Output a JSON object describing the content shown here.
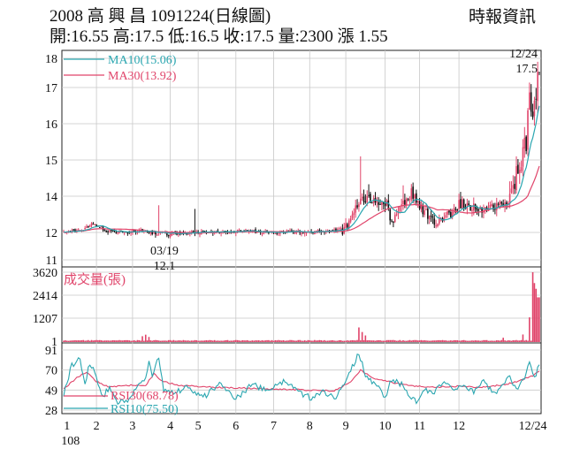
{
  "header": {
    "title": "2008  高 興 昌 1091224(日線圖)",
    "source": "時報資訊",
    "quote": "開:16.55 高:17.5 低:16.5 收:17.5 量:2300 漲 1.55"
  },
  "colors": {
    "up": "#e0446a",
    "down": "#111111",
    "ma10": "#2aa6b0",
    "ma30": "#e0446a",
    "volume": "#e0446a",
    "rsi30": "#e0446a",
    "rsi10": "#2aa6b0",
    "grid": "#c8c8c8"
  },
  "chart_data": [
    {
      "type": "candlestick",
      "panel": "price",
      "y_ticks": [
        "18",
        "17",
        "16",
        "15",
        "14",
        "12",
        "11"
      ],
      "ylim": [
        11,
        18
      ],
      "legend": [
        "MA10(15.06)",
        "MA30(13.92)"
      ],
      "annotations": {
        "high_date": "12/24",
        "high_value": "17.5",
        "low_date": "03/19",
        "low_value": "12.1"
      },
      "anchors": [
        [
          0,
          12.0
        ],
        [
          10,
          12.1
        ],
        [
          18,
          12.5
        ],
        [
          22,
          12.3
        ],
        [
          26,
          12.1
        ],
        [
          35,
          12.0
        ],
        [
          45,
          12.1
        ],
        [
          55,
          12.0
        ],
        [
          65,
          11.95
        ],
        [
          72,
          11.95
        ],
        [
          80,
          12.0
        ],
        [
          90,
          12.05
        ],
        [
          100,
          12.05
        ],
        [
          110,
          12.1
        ],
        [
          120,
          12.05
        ],
        [
          130,
          12.0
        ],
        [
          140,
          12.05
        ],
        [
          150,
          12.05
        ],
        [
          158,
          12.05
        ],
        [
          166,
          12.1
        ],
        [
          172,
          12.25
        ],
        [
          176,
          13.1
        ],
        [
          180,
          13.6
        ],
        [
          186,
          13.9
        ],
        [
          192,
          13.8
        ],
        [
          197,
          13.6
        ],
        [
          200,
          12.5
        ],
        [
          203,
          13.0
        ],
        [
          208,
          13.7
        ],
        [
          213,
          14.0
        ],
        [
          218,
          13.4
        ],
        [
          224,
          12.7
        ],
        [
          230,
          12.6
        ],
        [
          236,
          13.1
        ],
        [
          242,
          13.6
        ],
        [
          248,
          13.4
        ],
        [
          254,
          13.2
        ],
        [
          260,
          13.4
        ],
        [
          266,
          13.6
        ],
        [
          270,
          13.7
        ],
        [
          274,
          14.1
        ],
        [
          278,
          14.9
        ],
        [
          282,
          15.5
        ],
        [
          284,
          16.6
        ],
        [
          286,
          16.3
        ],
        [
          288,
          16.9
        ],
        [
          290,
          17.5
        ]
      ],
      "spikes": [
        {
          "i": 58,
          "high": 13.5
        },
        {
          "i": 80,
          "high": 13.3
        },
        {
          "i": 181,
          "high": 15.1
        },
        {
          "i": 207,
          "high": 14.3
        },
        {
          "i": 276,
          "high": 15.1
        }
      ],
      "ma10": "15.06",
      "ma30": "13.92"
    },
    {
      "type": "bar",
      "panel": "volume",
      "title": "成交量(張)",
      "y_ticks": [
        "3620",
        "2414",
        "1207",
        "1"
      ],
      "ylim": [
        0,
        3620
      ],
      "base_volume": 40,
      "peaks": [
        {
          "i": 48,
          "value": 260
        },
        {
          "i": 50,
          "value": 340
        },
        {
          "i": 52,
          "value": 220
        },
        {
          "i": 180,
          "value": 720
        },
        {
          "i": 182,
          "value": 480
        },
        {
          "i": 184,
          "value": 300
        },
        {
          "i": 268,
          "value": 180
        },
        {
          "i": 280,
          "value": 350
        },
        {
          "i": 284,
          "value": 1250
        },
        {
          "i": 286,
          "value": 3620
        },
        {
          "i": 287,
          "value": 3050
        },
        {
          "i": 288,
          "value": 2750
        },
        {
          "i": 289,
          "value": 2300
        },
        {
          "i": 290,
          "value": 2300
        }
      ]
    },
    {
      "type": "line",
      "panel": "rsi",
      "y_ticks": [
        "91",
        "70",
        "49",
        "28"
      ],
      "ylim": [
        28,
        91
      ],
      "series": [
        {
          "name": "RSI30(68.78)",
          "anchors": [
            [
              0,
              50
            ],
            [
              8,
              62
            ],
            [
              14,
              68
            ],
            [
              20,
              58
            ],
            [
              28,
              52
            ],
            [
              40,
              54
            ],
            [
              50,
              54
            ],
            [
              55,
              66
            ],
            [
              60,
              58
            ],
            [
              70,
              54
            ],
            [
              90,
              52
            ],
            [
              110,
              51
            ],
            [
              130,
              50
            ],
            [
              150,
              49
            ],
            [
              165,
              48
            ],
            [
              175,
              58
            ],
            [
              181,
              70
            ],
            [
              188,
              62
            ],
            [
              200,
              57
            ],
            [
              215,
              53
            ],
            [
              225,
              52
            ],
            [
              240,
              53
            ],
            [
              255,
              52
            ],
            [
              270,
              55
            ],
            [
              280,
              60
            ],
            [
              286,
              64
            ],
            [
              290,
              68.78
            ]
          ]
        },
        {
          "name": "RSI10(75.50)",
          "anchors": [
            [
              0,
              45
            ],
            [
              5,
              75
            ],
            [
              10,
              82
            ],
            [
              13,
              55
            ],
            [
              16,
              78
            ],
            [
              20,
              62
            ],
            [
              24,
              42
            ],
            [
              28,
              52
            ],
            [
              33,
              36
            ],
            [
              40,
              38
            ],
            [
              45,
              52
            ],
            [
              50,
              60
            ],
            [
              52,
              82
            ],
            [
              54,
              65
            ],
            [
              58,
              85
            ],
            [
              61,
              50
            ],
            [
              66,
              46
            ],
            [
              75,
              51
            ],
            [
              85,
              41
            ],
            [
              95,
              56
            ],
            [
              105,
              40
            ],
            [
              115,
              55
            ],
            [
              125,
              47
            ],
            [
              135,
              60
            ],
            [
              145,
              45
            ],
            [
              152,
              40
            ],
            [
              158,
              48
            ],
            [
              165,
              40
            ],
            [
              170,
              52
            ],
            [
              175,
              70
            ],
            [
              180,
              88
            ],
            [
              184,
              64
            ],
            [
              190,
              55
            ],
            [
              196,
              42
            ],
            [
              200,
              60
            ],
            [
              206,
              55
            ],
            [
              212,
              40
            ],
            [
              216,
              36
            ],
            [
              220,
              50
            ],
            [
              226,
              45
            ],
            [
              232,
              60
            ],
            [
              238,
              48
            ],
            [
              244,
              55
            ],
            [
              250,
              46
            ],
            [
              256,
              60
            ],
            [
              262,
              45
            ],
            [
              268,
              55
            ],
            [
              272,
              62
            ],
            [
              276,
              50
            ],
            [
              280,
              58
            ],
            [
              284,
              76
            ],
            [
              287,
              62
            ],
            [
              290,
              75.5
            ]
          ]
        }
      ]
    }
  ],
  "x_axis": {
    "labels": [
      "1",
      "2",
      "3",
      "4",
      "5",
      "6",
      "7",
      "8",
      "9",
      "10",
      "11",
      "12",
      "12/24"
    ],
    "year_label": "108"
  }
}
